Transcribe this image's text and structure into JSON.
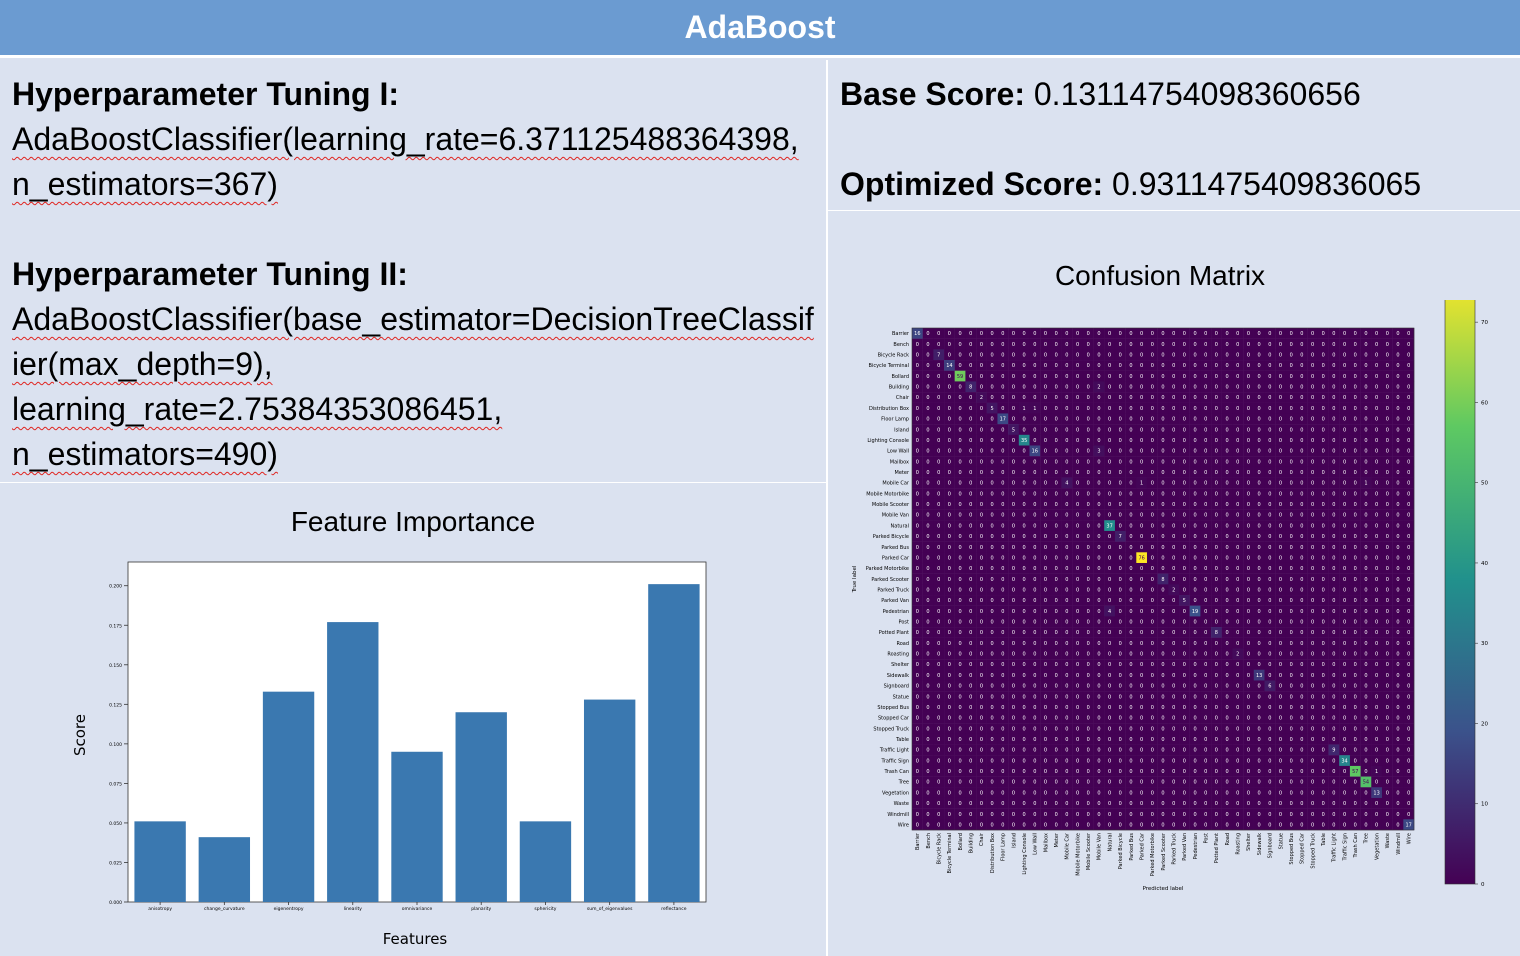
{
  "banner": {
    "title": "AdaBoost"
  },
  "tuning": {
    "heading1": "Hyperparameter Tuning I:",
    "code1": "AdaBoostClassifier(learning_rate=6.371125488364398, n_estimators=367)",
    "heading2": "Hyperparameter Tuning II:",
    "code2a": "AdaBoostClassifier(base_estimator=DecisionTreeClassifier(max_depth=9),",
    "code2b": "learning_rate=2.75384353086451,",
    "code2c": "n_estimators=490)"
  },
  "scores": {
    "base_label": "Base Score:",
    "base_value": "0.13114754098360656",
    "opt_label": "Optimized Score:",
    "opt_value": "0.9311475409836065"
  },
  "feature_chart": {
    "title": "Feature Importance",
    "color": "#3a78b0"
  },
  "confusion_chart": {
    "title": "Confusion Matrix",
    "xlabel": "Predicted label",
    "ylabel": "True label",
    "colorbar_ticks": [
      0,
      10,
      20,
      30,
      40,
      50,
      60,
      70
    ],
    "vmax": 76
  },
  "chart_data": [
    {
      "type": "bar",
      "title": "Feature Importance",
      "xlabel": "Features",
      "ylabel": "Score",
      "categories": [
        "anisotropy",
        "change_curvature",
        "eigenentropy",
        "linearity",
        "omnivariance",
        "planarity",
        "sphericity",
        "sum_of_eigenvalues",
        "reflectance"
      ],
      "values": [
        0.051,
        0.041,
        0.133,
        0.177,
        0.095,
        0.12,
        0.051,
        0.128,
        0.201
      ],
      "ylim": [
        0,
        0.215
      ],
      "yticks": [
        "0.000",
        "0.025",
        "0.050",
        "0.075",
        "0.100",
        "0.125",
        "0.150",
        "0.175",
        "0.200"
      ],
      "grid": false
    },
    {
      "type": "heatmap",
      "title": "Confusion Matrix",
      "xlabel": "Predicted label",
      "ylabel": "True label",
      "labels": [
        "Barrier",
        "Bench",
        "Bicycle Rack",
        "Bicycle Terminal",
        "Bollard",
        "Building",
        "Chair",
        "Distribution Box",
        "Floor Lamp",
        "Island",
        "Lighting Console",
        "Low Wall",
        "Mailbox",
        "Meter",
        "Mobile Car",
        "Mobile Motorbike",
        "Mobile Scooter",
        "Mobile Van",
        "Natural",
        "Parked Bicycle",
        "Parked Bus",
        "Parked Car",
        "Parked Motorbike",
        "Parked Scooter",
        "Parked Truck",
        "Parked Van",
        "Pedestrian",
        "Post",
        "Potted Plant",
        "Road",
        "Roasting",
        "Shelter",
        "Sidewalk",
        "Signboard",
        "Statue",
        "Stopped Bus",
        "Stopped Car",
        "Stopped Truck",
        "Table",
        "Traffic Light",
        "Traffic Sign",
        "Trash Can",
        "Tree",
        "Vegetation",
        "Waste",
        "Windmill",
        "Wire"
      ],
      "nonzero": [
        [
          0,
          0,
          16
        ],
        [
          2,
          2,
          7
        ],
        [
          3,
          3,
          14
        ],
        [
          4,
          4,
          59
        ],
        [
          5,
          5,
          8
        ],
        [
          6,
          6,
          2
        ],
        [
          7,
          7,
          5
        ],
        [
          8,
          8,
          17
        ],
        [
          9,
          9,
          5
        ],
        [
          10,
          10,
          35
        ],
        [
          11,
          11,
          16
        ],
        [
          14,
          14,
          4
        ],
        [
          18,
          18,
          37
        ],
        [
          19,
          19,
          7
        ],
        [
          21,
          21,
          76
        ],
        [
          23,
          23,
          8
        ],
        [
          24,
          24,
          2
        ],
        [
          25,
          25,
          5
        ],
        [
          26,
          26,
          19
        ],
        [
          28,
          28,
          8
        ],
        [
          30,
          30,
          2
        ],
        [
          32,
          32,
          13
        ],
        [
          33,
          33,
          6
        ],
        [
          39,
          39,
          9
        ],
        [
          40,
          40,
          34
        ],
        [
          41,
          41,
          57
        ],
        [
          42,
          42,
          54
        ],
        [
          43,
          43,
          13
        ],
        [
          46,
          46,
          17
        ],
        [
          5,
          17,
          2
        ],
        [
          7,
          10,
          1
        ],
        [
          7,
          11,
          1
        ],
        [
          11,
          17,
          3
        ],
        [
          14,
          21,
          1
        ],
        [
          14,
          42,
          1
        ],
        [
          26,
          18,
          4
        ],
        [
          41,
          43,
          1
        ]
      ],
      "vmax": 76,
      "colorbar_ticks": [
        0,
        10,
        20,
        30,
        40,
        50,
        60,
        70
      ]
    }
  ]
}
